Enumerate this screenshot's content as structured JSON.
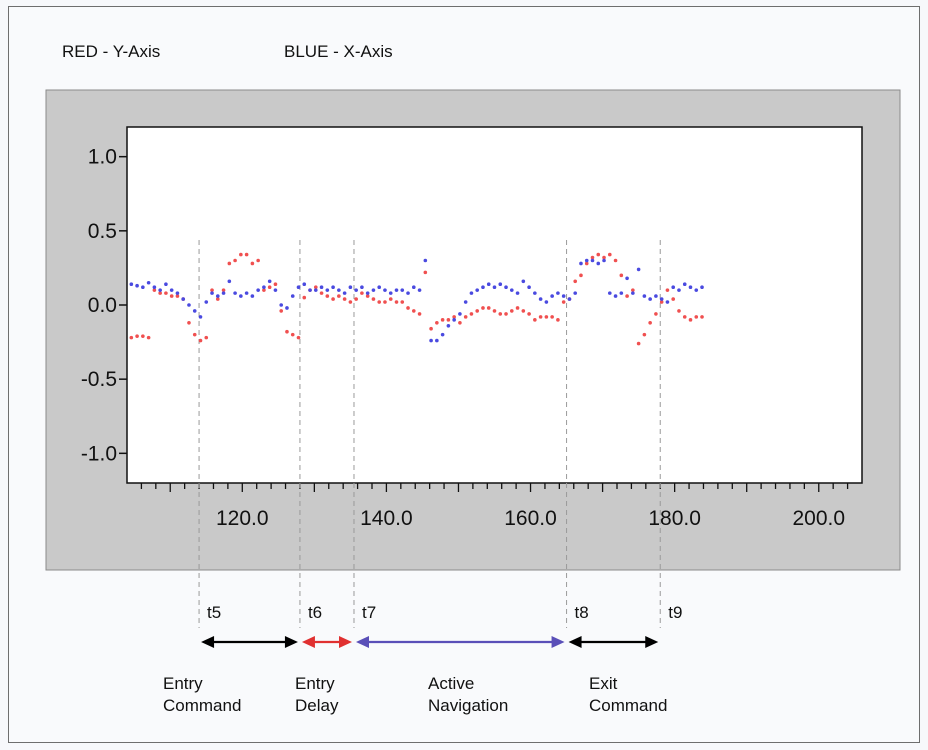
{
  "legend": {
    "red_label": "RED - Y-Axis",
    "blue_label": "BLUE - X-Axis"
  },
  "colors": {
    "panel_gray": "#c9c9c9",
    "red": "#f05050",
    "blue": "#4a4ae0",
    "arrow_black": "#000000",
    "arrow_red": "#e03030",
    "arrow_blue": "#5a4fb8"
  },
  "chart_data": {
    "type": "scatter",
    "title": "",
    "xlabel": "",
    "ylabel": "",
    "xlim": [
      104,
      206
    ],
    "ylim": [
      -1.2,
      1.2
    ],
    "x_ticks": [
      {
        "value": 120,
        "label": "120.0"
      },
      {
        "value": 140,
        "label": "140.0"
      },
      {
        "value": 160,
        "label": "160.0"
      },
      {
        "value": 180,
        "label": "180.0"
      },
      {
        "value": 200,
        "label": "200.0"
      }
    ],
    "y_ticks": [
      {
        "value": 1.0,
        "label": "1.0"
      },
      {
        "value": 0.5,
        "label": "0.5"
      },
      {
        "value": 0.0,
        "label": "0.0"
      },
      {
        "value": -0.5,
        "label": "-0.5"
      },
      {
        "value": -1.0,
        "label": "-1.0"
      }
    ],
    "grid": false,
    "series": [
      {
        "name": "RED - Y-Axis",
        "color": "#f05050",
        "x": [
          104.6,
          105.4,
          106.2,
          107.0,
          107.8,
          108.6,
          109.4,
          110.2,
          111.0,
          111.8,
          112.6,
          113.4,
          114.2,
          115.0,
          115.8,
          116.6,
          117.4,
          118.2,
          119.0,
          119.8,
          120.6,
          121.4,
          122.2,
          123.0,
          123.8,
          124.6,
          125.4,
          126.2,
          127.0,
          127.8,
          128.6,
          129.4,
          130.2,
          131.0,
          131.8,
          132.6,
          133.4,
          134.2,
          135.0,
          135.8,
          136.6,
          137.4,
          138.2,
          139.0,
          139.8,
          140.6,
          141.4,
          142.2,
          143.0,
          143.8,
          144.6,
          145.4,
          146.2,
          147.0,
          147.8,
          148.6,
          149.4,
          150.2,
          151.0,
          151.8,
          152.6,
          153.4,
          154.2,
          155.0,
          155.8,
          156.6,
          157.4,
          158.2,
          159.0,
          159.8,
          160.6,
          161.4,
          162.2,
          163.0,
          163.8,
          164.6,
          165.4,
          166.2,
          167.0,
          167.8,
          168.6,
          169.4,
          170.2,
          171.0,
          171.8,
          172.6,
          173.4,
          174.2,
          175.0,
          175.8,
          176.6,
          177.4,
          178.2,
          179.0,
          179.8,
          180.6,
          181.4,
          182.2,
          183.0,
          183.8
        ],
        "y": [
          -0.22,
          -0.21,
          -0.21,
          -0.22,
          0.1,
          0.08,
          0.08,
          0.06,
          0.06,
          0.04,
          -0.12,
          -0.2,
          -0.24,
          -0.22,
          0.1,
          0.04,
          0.1,
          0.28,
          0.3,
          0.34,
          0.34,
          0.28,
          0.3,
          0.1,
          0.12,
          0.14,
          -0.04,
          -0.18,
          -0.2,
          -0.22,
          0.05,
          0.1,
          0.12,
          0.08,
          0.06,
          0.04,
          0.06,
          0.04,
          0.02,
          0.04,
          0.08,
          0.06,
          0.04,
          0.02,
          0.02,
          0.04,
          0.02,
          0.02,
          -0.02,
          -0.04,
          -0.06,
          0.22,
          -0.16,
          -0.12,
          -0.1,
          -0.1,
          -0.08,
          -0.12,
          -0.08,
          -0.06,
          -0.04,
          -0.02,
          -0.02,
          -0.04,
          -0.06,
          -0.06,
          -0.04,
          -0.02,
          -0.04,
          -0.06,
          -0.1,
          -0.08,
          -0.08,
          -0.08,
          -0.1,
          0.02,
          0.04,
          0.16,
          0.2,
          0.28,
          0.32,
          0.34,
          0.32,
          0.34,
          0.3,
          0.2,
          0.06,
          0.1,
          -0.26,
          -0.2,
          -0.12,
          -0.06,
          0.02,
          0.1,
          0.04,
          -0.04,
          -0.08,
          -0.1,
          -0.08,
          -0.08
        ]
      },
      {
        "name": "BLUE - X-Axis",
        "color": "#4a4ae0",
        "x": [
          104.6,
          105.4,
          106.2,
          107.0,
          107.8,
          108.6,
          109.4,
          110.2,
          111.0,
          111.8,
          112.6,
          113.4,
          114.2,
          115.0,
          115.8,
          116.6,
          117.4,
          118.2,
          119.0,
          119.8,
          120.6,
          121.4,
          122.2,
          123.0,
          123.8,
          124.6,
          125.4,
          126.2,
          127.0,
          127.8,
          128.6,
          129.4,
          130.2,
          131.0,
          131.8,
          132.6,
          133.4,
          134.2,
          135.0,
          135.8,
          136.6,
          137.4,
          138.2,
          139.0,
          139.8,
          140.6,
          141.4,
          142.2,
          143.0,
          143.8,
          144.6,
          145.4,
          146.2,
          147.0,
          147.8,
          148.6,
          149.4,
          150.2,
          151.0,
          151.8,
          152.6,
          153.4,
          154.2,
          155.0,
          155.8,
          156.6,
          157.4,
          158.2,
          159.0,
          159.8,
          160.6,
          161.4,
          162.2,
          163.0,
          163.8,
          164.6,
          165.4,
          166.2,
          167.0,
          167.8,
          168.6,
          169.4,
          170.2,
          171.0,
          171.8,
          172.6,
          173.4,
          174.2,
          175.0,
          175.8,
          176.6,
          177.4,
          178.2,
          179.0,
          179.8,
          180.6,
          181.4,
          182.2,
          183.0,
          183.8
        ],
        "y": [
          0.14,
          0.13,
          0.12,
          0.15,
          0.12,
          0.1,
          0.14,
          0.1,
          0.08,
          0.04,
          0.0,
          -0.04,
          -0.08,
          0.02,
          0.08,
          0.06,
          0.08,
          0.16,
          0.08,
          0.06,
          0.08,
          0.06,
          0.1,
          0.12,
          0.16,
          0.1,
          0.0,
          -0.02,
          0.06,
          0.12,
          0.14,
          0.1,
          0.1,
          0.12,
          0.1,
          0.12,
          0.1,
          0.08,
          0.12,
          0.1,
          0.12,
          0.08,
          0.1,
          0.12,
          0.1,
          0.08,
          0.1,
          0.1,
          0.08,
          0.12,
          0.1,
          0.3,
          -0.24,
          -0.24,
          -0.2,
          -0.14,
          -0.1,
          -0.06,
          0.02,
          0.08,
          0.1,
          0.12,
          0.14,
          0.12,
          0.14,
          0.12,
          0.1,
          0.08,
          0.16,
          0.12,
          0.08,
          0.04,
          0.02,
          0.06,
          0.08,
          0.06,
          0.04,
          0.08,
          0.28,
          0.3,
          0.3,
          0.28,
          0.3,
          0.08,
          0.06,
          0.08,
          0.18,
          0.08,
          0.24,
          0.06,
          0.04,
          0.06,
          0.04,
          0.02,
          0.12,
          0.1,
          0.14,
          0.12,
          0.1,
          0.12
        ]
      }
    ]
  },
  "markers": [
    {
      "label": "t5",
      "x": 114
    },
    {
      "label": "t6",
      "x": 128
    },
    {
      "label": "t7",
      "x": 135.5
    },
    {
      "label": "t8",
      "x": 165
    },
    {
      "label": "t9",
      "x": 178
    }
  ],
  "phases": [
    {
      "line1": "Entry",
      "line2": "Command",
      "color": "#000000",
      "from": 0,
      "to": 1
    },
    {
      "line1": "Entry",
      "line2": "Delay",
      "color": "#e03030",
      "from": 1,
      "to": 2
    },
    {
      "line1": "Active",
      "line2": "Navigation",
      "color": "#5a4fb8",
      "from": 2,
      "to": 3
    },
    {
      "line1": "Exit",
      "line2": "Command",
      "color": "#000000",
      "from": 3,
      "to": 4
    }
  ]
}
